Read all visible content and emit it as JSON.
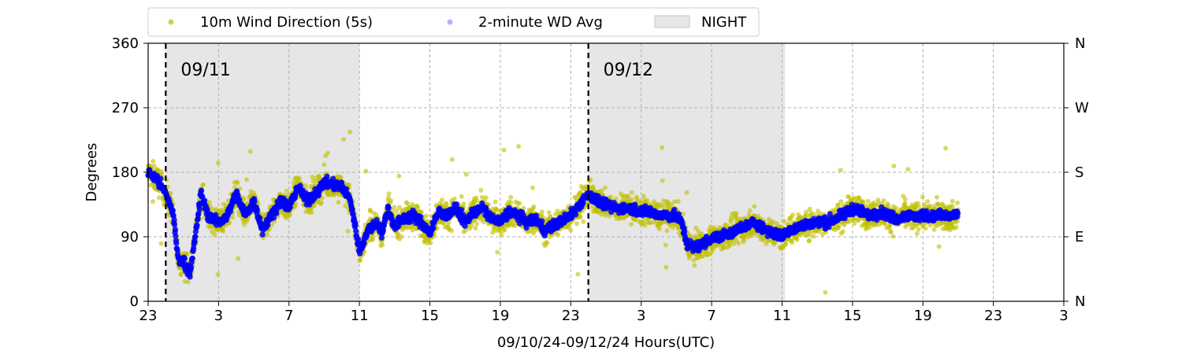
{
  "chart_data": {
    "type": "scatter",
    "title": "",
    "xlabel": "09/10/24-09/12/24  Hours(UTC)",
    "ylabel": "Degrees",
    "ylim": [
      0,
      360
    ],
    "xlim": [
      "09/10 23:00",
      "09/13 03:00"
    ],
    "x_ticks": [
      "23",
      "3",
      "7",
      "11",
      "15",
      "19",
      "23",
      "3",
      "7",
      "11",
      "15",
      "19",
      "23",
      "3"
    ],
    "y_ticks": [
      "0",
      "90",
      "180",
      "270",
      "360"
    ],
    "y2_ticks": [
      "N",
      "E",
      "S",
      "W",
      "N"
    ],
    "grid": true,
    "legend": {
      "placement": "top-left, above plot",
      "entries": [
        "10m Wind Direction (5s)",
        "2-minute WD Avg",
        "NIGHT"
      ]
    },
    "day_markers": [
      {
        "time": "09/11 00:00",
        "label": "09/11"
      },
      {
        "time": "09/12 00:00",
        "label": "09/12"
      }
    ],
    "night_periods": [
      {
        "start": "09/11 00:00",
        "end": "09/11 11:00"
      },
      {
        "start": "09/12 00:00",
        "end": "09/12 11:10"
      }
    ],
    "series": [
      {
        "name": "10m Wind Direction (5s)",
        "color": "#bfbf00",
        "marker": "dot",
        "spread_deg": 22,
        "x_hours_since_0910_23UTC": [
          0,
          0.5,
          1.0,
          1.4,
          1.7,
          2.0,
          2.4,
          3.0,
          3.4,
          4.0,
          4.5,
          5.0,
          5.5,
          6.0,
          6.5,
          7.0,
          7.5,
          8.0,
          8.5,
          9.0,
          9.5,
          10.0,
          11.0,
          11.5,
          12.0,
          12.5,
          13.0,
          13.3,
          13.6,
          14.0,
          14.5,
          15.0,
          15.5,
          16.0,
          16.5,
          17.0,
          17.5,
          18.0,
          18.5,
          19.0,
          19.5,
          20.0,
          20.5,
          21.0,
          21.5,
          22.0,
          22.5,
          23.0,
          24.0,
          25.0,
          25.5,
          26.0,
          26.5,
          27.0,
          27.5,
          28.0,
          28.5,
          29.0,
          29.5,
          30.0,
          30.3,
          30.6,
          31.0,
          31.5,
          32.0,
          32.5,
          33.0,
          33.5,
          34.0,
          34.5,
          35.0,
          35.5,
          36.0,
          36.5,
          37.0,
          38.0,
          38.5,
          39.0,
          39.5,
          40.0,
          40.5,
          41.0,
          41.5,
          42.0,
          42.5,
          43.0,
          43.5,
          44.0,
          44.5,
          45.0,
          45.5,
          46.0
        ],
        "y": [
          180,
          170,
          150,
          125,
          60,
          55,
          40,
          150,
          120,
          110,
          120,
          150,
          120,
          140,
          100,
          120,
          140,
          130,
          160,
          140,
          150,
          165,
          160,
          140,
          70,
          100,
          110,
          95,
          130,
          105,
          115,
          120,
          110,
          95,
          125,
          120,
          130,
          110,
          125,
          130,
          115,
          110,
          125,
          120,
          110,
          115,
          100,
          105,
          120,
          150,
          140,
          135,
          130,
          130,
          130,
          125,
          125,
          120,
          120,
          118,
          110,
          80,
          75,
          80,
          88,
          90,
          95,
          100,
          105,
          110,
          100,
          95,
          90,
          100,
          105,
          110,
          110,
          115,
          120,
          130,
          125,
          120,
          125,
          120,
          115,
          120,
          118,
          120,
          118,
          120,
          118,
          120
        ]
      },
      {
        "name": "2-minute WD Avg",
        "color": "#0000ff",
        "marker": "dot",
        "x_hours_since_0910_23UTC": [
          0,
          0.5,
          1.0,
          1.4,
          1.7,
          2.0,
          2.4,
          3.0,
          3.4,
          4.0,
          4.5,
          5.0,
          5.5,
          6.0,
          6.5,
          7.0,
          7.5,
          8.0,
          8.5,
          9.0,
          9.5,
          10.0,
          11.0,
          11.5,
          12.0,
          12.5,
          13.0,
          13.3,
          13.6,
          14.0,
          14.5,
          15.0,
          15.5,
          16.0,
          16.5,
          17.0,
          17.5,
          18.0,
          18.5,
          19.0,
          19.5,
          20.0,
          20.5,
          21.0,
          21.5,
          22.0,
          22.5,
          23.0,
          24.0,
          25.0,
          25.5,
          26.0,
          26.5,
          27.0,
          27.5,
          28.0,
          28.5,
          29.0,
          29.5,
          30.0,
          30.3,
          30.6,
          31.0,
          31.5,
          32.0,
          32.5,
          33.0,
          33.5,
          34.0,
          34.5,
          35.0,
          35.5,
          36.0,
          36.5,
          37.0,
          38.0,
          38.5,
          39.0,
          39.5,
          40.0,
          40.5,
          41.0,
          41.5,
          42.0,
          42.5,
          43.0,
          43.5,
          44.0,
          44.5,
          45.0,
          45.5,
          46.0
        ],
        "y": [
          180,
          170,
          150,
          125,
          60,
          55,
          40,
          150,
          120,
          110,
          120,
          150,
          120,
          140,
          100,
          120,
          140,
          130,
          160,
          140,
          150,
          165,
          160,
          140,
          70,
          100,
          110,
          95,
          130,
          105,
          115,
          120,
          110,
          95,
          125,
          120,
          130,
          110,
          125,
          130,
          115,
          110,
          125,
          120,
          110,
          115,
          100,
          105,
          120,
          150,
          140,
          135,
          130,
          130,
          130,
          125,
          125,
          120,
          120,
          118,
          110,
          80,
          75,
          80,
          88,
          90,
          95,
          100,
          105,
          110,
          100,
          95,
          90,
          100,
          105,
          110,
          110,
          115,
          120,
          130,
          125,
          120,
          125,
          120,
          115,
          120,
          118,
          120,
          118,
          120,
          118,
          120
        ]
      }
    ]
  }
}
